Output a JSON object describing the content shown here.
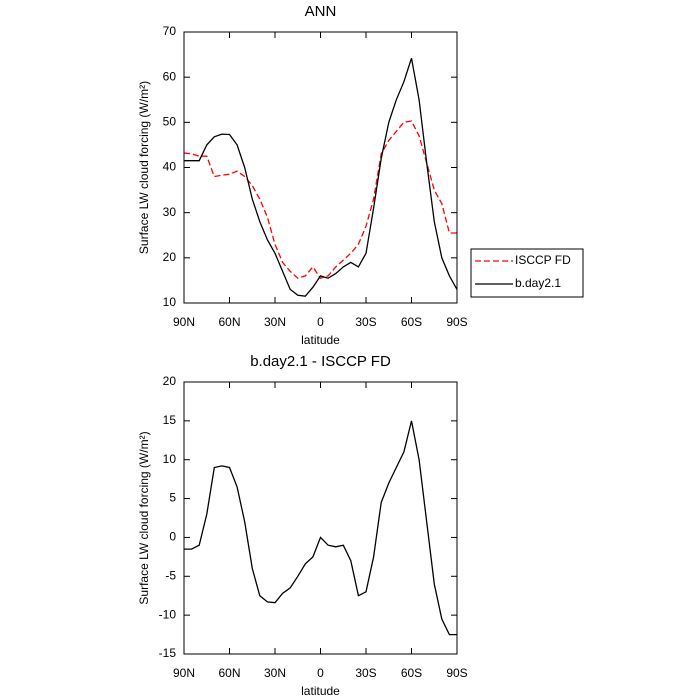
{
  "chart_data": [
    {
      "type": "line",
      "title": "ANN",
      "xlabel": "latitude",
      "ylabel": "Surface LW cloud forcing (W/m²)",
      "x": [
        90,
        85,
        80,
        75,
        70,
        65,
        60,
        55,
        50,
        45,
        40,
        35,
        30,
        25,
        20,
        15,
        10,
        5,
        0,
        -5,
        -10,
        -15,
        -20,
        -25,
        -30,
        -35,
        -40,
        -45,
        -50,
        -55,
        -60,
        -65,
        -70,
        -75,
        -80,
        -85,
        -90
      ],
      "series": [
        {
          "name": "ISCCP FD",
          "color": "#ff0000",
          "linestyle": "dashed",
          "values": [
            43.2,
            43,
            42.5,
            42.5,
            38,
            38.3,
            38.5,
            39.2,
            38,
            36,
            33,
            29,
            23,
            19,
            17,
            15.5,
            16,
            18,
            15.5,
            16,
            18,
            19.5,
            21,
            23,
            27,
            33,
            43,
            46,
            48,
            50,
            50.3,
            47,
            41,
            35,
            32,
            25.5,
            25.5
          ]
        },
        {
          "name": "b.day2.1",
          "color": "#000000",
          "linestyle": "solid",
          "values": [
            41.5,
            41.5,
            41.5,
            45,
            46.8,
            47.4,
            47.3,
            45,
            40,
            33,
            28,
            24,
            21,
            17,
            13,
            11.7,
            11.5,
            13.5,
            16,
            15.5,
            16.5,
            18,
            19,
            18,
            21,
            31,
            42,
            50,
            55,
            59,
            64.2,
            55,
            41,
            28,
            20,
            16,
            13
          ]
        }
      ],
      "xlim": [
        90,
        -90
      ],
      "xticks": [
        {
          "value": 90,
          "label": "90N"
        },
        {
          "value": 60,
          "label": "60N"
        },
        {
          "value": 30,
          "label": "30N"
        },
        0,
        {
          "value": -30,
          "label": "30S"
        },
        {
          "value": -60,
          "label": "60S"
        },
        {
          "value": -90,
          "label": "90S"
        }
      ],
      "ylim": [
        10,
        70
      ],
      "yticks": [
        10,
        20,
        30,
        40,
        50,
        60,
        70
      ],
      "legend": "right"
    },
    {
      "type": "line",
      "title": "b.day2.1 - ISCCP FD",
      "xlabel": "latitude",
      "ylabel": "Surface LW cloud forcing (W/m²)",
      "x": [
        90,
        85,
        80,
        75,
        70,
        65,
        60,
        55,
        50,
        45,
        40,
        35,
        30,
        25,
        20,
        15,
        10,
        5,
        0,
        -5,
        -10,
        -15,
        -20,
        -25,
        -30,
        -35,
        -40,
        -45,
        -50,
        -55,
        -60,
        -65,
        -70,
        -75,
        -80,
        -85,
        -90
      ],
      "series": [
        {
          "color": "#000000",
          "linestyle": "solid",
          "values": [
            -1.5,
            -1.5,
            -1,
            3,
            9,
            9.2,
            9,
            6.5,
            2,
            -4,
            -7.5,
            -8.3,
            -8.4,
            -7.2,
            -6.5,
            -5,
            -3.4,
            -2.5,
            0,
            -1,
            -1.2,
            -1,
            -3,
            -7.5,
            -7,
            -2.5,
            4.5,
            7,
            9,
            11,
            15,
            10,
            2,
            -6,
            -10.5,
            -12.5,
            -12.5
          ]
        }
      ],
      "xlim": [
        90,
        -90
      ],
      "xticks": [
        {
          "value": 90,
          "label": "90N"
        },
        {
          "value": 60,
          "label": "60N"
        },
        {
          "value": 30,
          "label": "30N"
        },
        0,
        {
          "value": -30,
          "label": "30S"
        },
        {
          "value": -60,
          "label": "60S"
        },
        {
          "value": -90,
          "label": "90S"
        }
      ],
      "ylim": [
        -15,
        20
      ],
      "yticks": [
        -15,
        -10,
        -5,
        0,
        5,
        10,
        15,
        20
      ]
    }
  ]
}
